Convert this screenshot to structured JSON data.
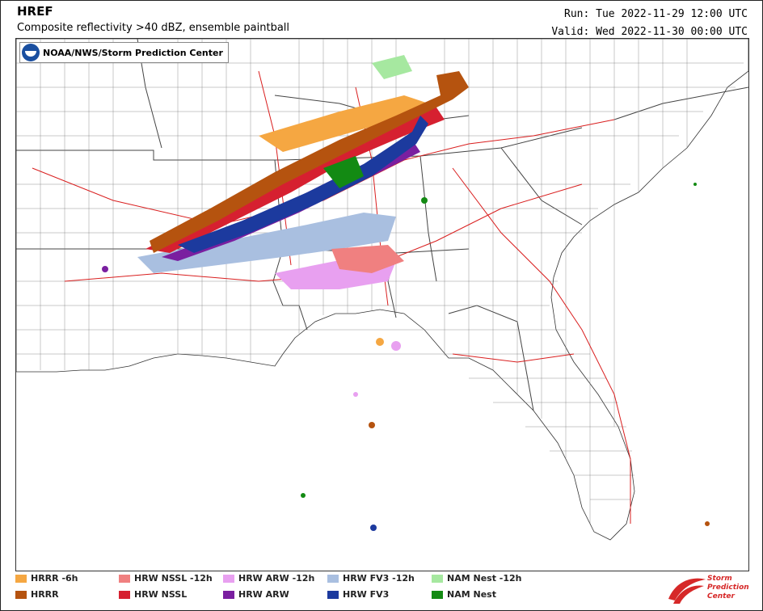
{
  "header": {
    "title": "HREF",
    "subtitle": "Composite reflectivity >40 dBZ, ensemble paintball",
    "run": "Run: Tue 2022-11-29 12:00 UTC",
    "valid": "Valid: Wed 2022-11-30 00:00 UTC"
  },
  "map": {
    "badge_text": "NOAA/NWS/Storm Prediction Center",
    "region": "Southeastern United States"
  },
  "legend": [
    {
      "label": "HRRR -6h",
      "color": "#f5a742"
    },
    {
      "label": "HRRR",
      "color": "#b5530f"
    },
    {
      "label": "HRW NSSL -12h",
      "color": "#f08080"
    },
    {
      "label": "HRW NSSL",
      "color": "#d62030"
    },
    {
      "label": "HRW ARW -12h",
      "color": "#e8a0f0"
    },
    {
      "label": "HRW ARW",
      "color": "#7a1fa0"
    },
    {
      "label": "HRW FV3 -12h",
      "color": "#a9bfe0"
    },
    {
      "label": "HRW FV3",
      "color": "#1c3a9e"
    },
    {
      "label": "NAM Nest -12h",
      "color": "#a6e8a0"
    },
    {
      "label": "NAM Nest",
      "color": "#138a13"
    }
  ],
  "footer": {
    "spc_line1": "Storm",
    "spc_line2": "Prediction",
    "spc_line3": "Center"
  }
}
